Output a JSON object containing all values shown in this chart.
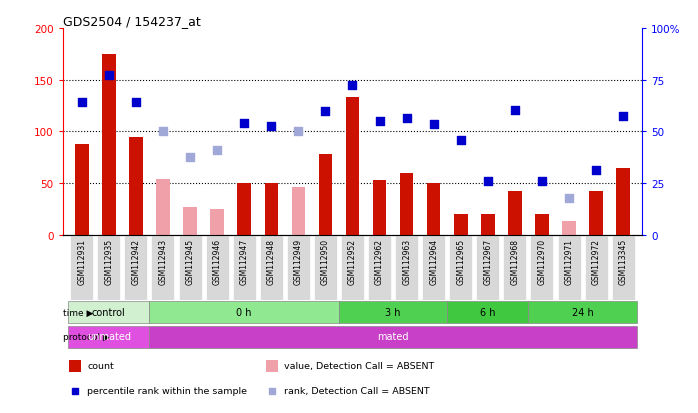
{
  "title": "GDS2504 / 154237_at",
  "samples": [
    "GSM112931",
    "GSM112935",
    "GSM112942",
    "GSM112943",
    "GSM112945",
    "GSM112946",
    "GSM112947",
    "GSM112948",
    "GSM112949",
    "GSM112950",
    "GSM112952",
    "GSM112962",
    "GSM112963",
    "GSM112964",
    "GSM112965",
    "GSM112967",
    "GSM112968",
    "GSM112970",
    "GSM112971",
    "GSM112972",
    "GSM113345"
  ],
  "count_values": [
    88,
    175,
    95,
    null,
    null,
    null,
    50,
    50,
    null,
    78,
    133,
    53,
    60,
    50,
    20,
    20,
    42,
    20,
    null,
    42,
    65
  ],
  "count_absent": [
    null,
    null,
    null,
    54,
    27,
    25,
    null,
    null,
    46,
    null,
    null,
    null,
    null,
    null,
    null,
    null,
    null,
    null,
    13,
    null,
    null
  ],
  "rank_values": [
    128,
    155,
    128,
    null,
    null,
    null,
    108,
    105,
    null,
    120,
    145,
    110,
    113,
    107,
    92,
    52,
    121,
    52,
    null,
    63,
    115
  ],
  "rank_absent": [
    null,
    null,
    null,
    100,
    75,
    82,
    null,
    null,
    100,
    null,
    null,
    null,
    null,
    null,
    null,
    null,
    null,
    null,
    36,
    null,
    null
  ],
  "time_groups": [
    {
      "label": "control",
      "start": 0,
      "end": 3,
      "color": "#d0f0d0"
    },
    {
      "label": "0 h",
      "start": 3,
      "end": 10,
      "color": "#90e890"
    },
    {
      "label": "3 h",
      "start": 10,
      "end": 14,
      "color": "#50d050"
    },
    {
      "label": "6 h",
      "start": 14,
      "end": 17,
      "color": "#40c840"
    },
    {
      "label": "24 h",
      "start": 17,
      "end": 21,
      "color": "#50d050"
    }
  ],
  "protocol_groups": [
    {
      "label": "unmated",
      "start": 0,
      "end": 3,
      "color": "#e050e0"
    },
    {
      "label": "mated",
      "start": 3,
      "end": 21,
      "color": "#c840c8"
    }
  ],
  "bar_color": "#cc1100",
  "absent_bar_color": "#f0a0a8",
  "rank_color": "#0000cc",
  "rank_absent_color": "#a0a8d8",
  "ylim_left": [
    0,
    200
  ],
  "ylim_right": [
    0,
    100
  ],
  "left_ticks": [
    0,
    50,
    100,
    150,
    200
  ],
  "right_ticks": [
    0,
    25,
    50,
    75,
    100
  ],
  "grid_values": [
    50,
    100,
    150
  ]
}
